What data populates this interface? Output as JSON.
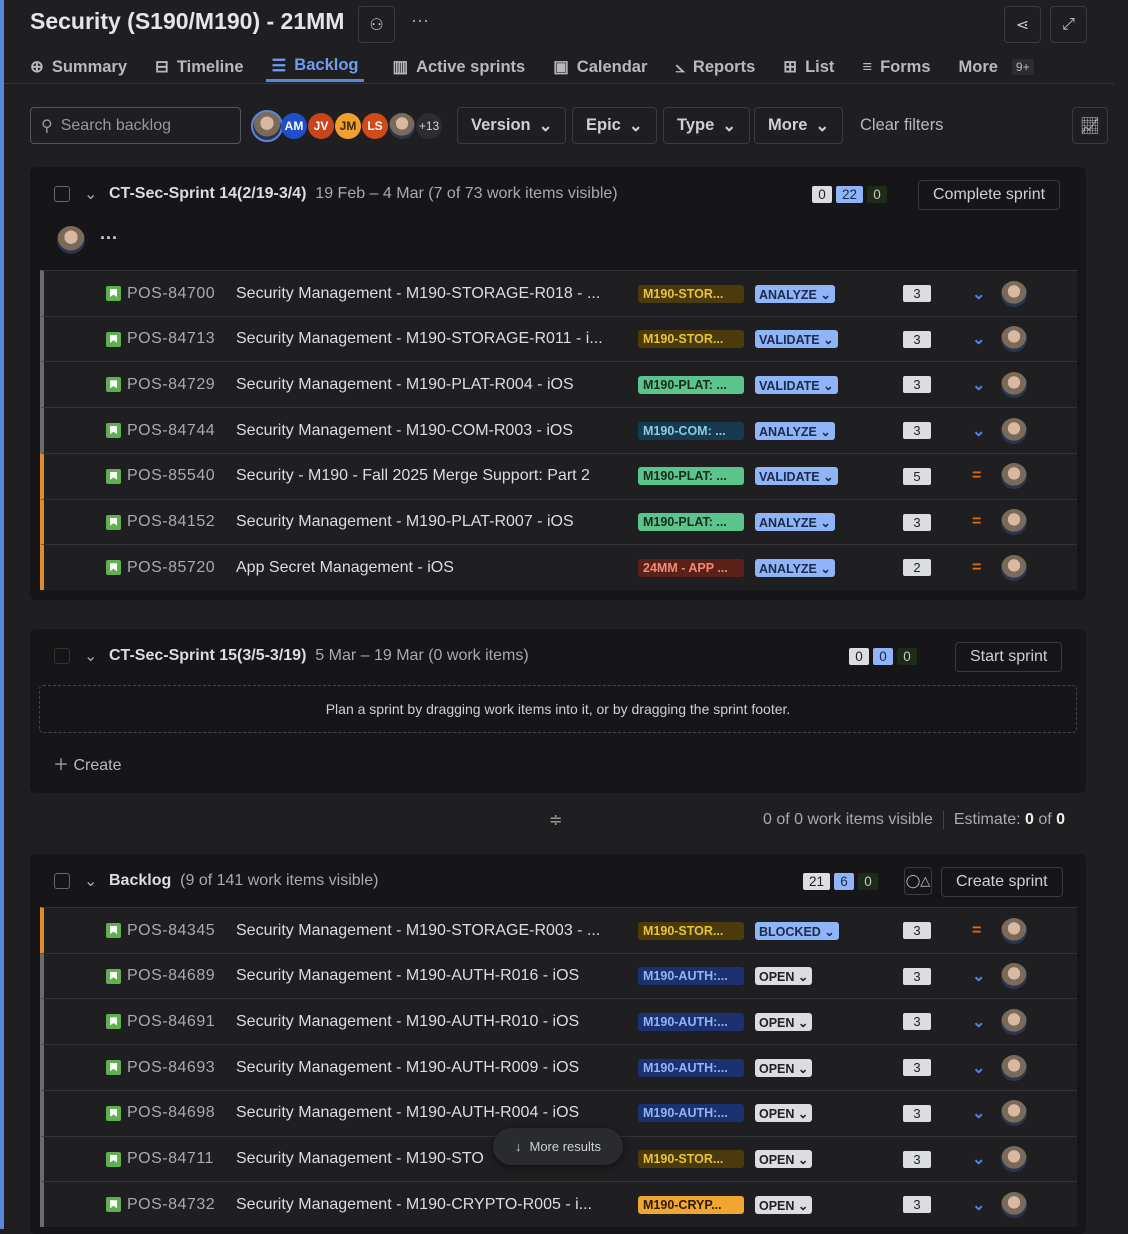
{
  "header": {
    "title": "Security (S190/M190) - 21MM",
    "more_menu": "···"
  },
  "tabs": [
    {
      "label": "Summary",
      "icon": "globe-icon"
    },
    {
      "label": "Timeline",
      "icon": "timeline-icon"
    },
    {
      "label": "Backlog",
      "icon": "backlog-icon",
      "active": true
    },
    {
      "label": "Active sprints",
      "icon": "board-icon"
    },
    {
      "label": "Calendar",
      "icon": "calendar-icon"
    },
    {
      "label": "Reports",
      "icon": "chart-icon"
    },
    {
      "label": "List",
      "icon": "list-icon"
    },
    {
      "label": "Forms",
      "icon": "forms-icon"
    },
    {
      "label": "More",
      "icon": ""
    }
  ],
  "tabs_more_badge": "9+",
  "filters": {
    "search_placeholder": "Search backlog",
    "avatars": [
      "AM",
      "JV",
      "JM",
      "LS"
    ],
    "avatar_more": "+13",
    "version": "Version",
    "epic": "Epic",
    "type": "Type",
    "more": "More",
    "clear": "Clear filters"
  },
  "sprint14": {
    "name": "CT-Sec-Sprint 14(2/19-3/4)",
    "dates": "19 Feb – 4 Mar (7 of 73 work items visible)",
    "counts": [
      "0",
      "22",
      "0"
    ],
    "action": "Complete sprint",
    "dots": "···",
    "rows": [
      {
        "key": "POS-84700",
        "summary": "Security Management - M190-STORAGE-R018 - ...",
        "epic": "M190-STOR...",
        "epic_color": "storage",
        "status": "ANALYZE",
        "est": "3",
        "prio": "low",
        "flag": "gray"
      },
      {
        "key": "POS-84713",
        "summary": "Security Management - M190-STORAGE-R011 - i...",
        "epic": "M190-STOR...",
        "epic_color": "storage",
        "status": "VALIDATE",
        "est": "3",
        "prio": "low",
        "flag": "gray"
      },
      {
        "key": "POS-84729",
        "summary": "Security Management - M190-PLAT-R004 - iOS",
        "epic": "M190-PLAT: ...",
        "epic_color": "plat",
        "status": "VALIDATE",
        "est": "3",
        "prio": "low",
        "flag": "gray"
      },
      {
        "key": "POS-84744",
        "summary": "Security Management - M190-COM-R003 - iOS",
        "epic": "M190-COM: ...",
        "epic_color": "com",
        "status": "ANALYZE",
        "est": "3",
        "prio": "low",
        "flag": "gray"
      },
      {
        "key": "POS-85540",
        "summary": "Security - M190 - Fall 2025 Merge Support: Part 2",
        "epic": "M190-PLAT: ...",
        "epic_color": "plat",
        "status": "VALIDATE",
        "est": "5",
        "prio": "med",
        "flag": "orange"
      },
      {
        "key": "POS-84152",
        "summary": "Security Management - M190-PLAT-R007 - iOS",
        "epic": "M190-PLAT: ...",
        "epic_color": "plat",
        "status": "ANALYZE",
        "est": "3",
        "prio": "med",
        "flag": "orange"
      },
      {
        "key": "POS-85720",
        "summary": "App Secret Management - iOS",
        "epic": "24MM - APP ...",
        "epic_color": "app",
        "status": "ANALYZE",
        "est": "2",
        "prio": "med",
        "flag": "orange"
      }
    ]
  },
  "sprint15": {
    "name": "CT-Sec-Sprint 15(3/5-3/19)",
    "dates": "5 Mar – 19 Mar (0 work items)",
    "counts": [
      "0",
      "0",
      "0"
    ],
    "action": "Start sprint",
    "empty": "Plan a sprint by dragging work items into it, or by dragging the sprint footer.",
    "create": "Create"
  },
  "summary_bar": {
    "visible": "0 of 0 work items visible",
    "estimate_label": "Estimate:",
    "estimate_a": "0",
    "of": "of",
    "estimate_b": "0"
  },
  "backlog": {
    "name": "Backlog",
    "count": "(9 of 141 work items visible)",
    "counts": [
      "21",
      "6",
      "0"
    ],
    "action": "Create sprint",
    "rows": [
      {
        "key": "POS-84345",
        "summary": "Security Management - M190-STORAGE-R003 - ...",
        "epic": "M190-STOR...",
        "epic_color": "storage",
        "status": "BLOCKED",
        "est": "3",
        "prio": "med",
        "flag": "orange"
      },
      {
        "key": "POS-84689",
        "summary": "Security Management - M190-AUTH-R016 - iOS",
        "epic": "M190-AUTH:...",
        "epic_color": "auth",
        "status": "OPEN",
        "est": "3",
        "prio": "low",
        "flag": "gray"
      },
      {
        "key": "POS-84691",
        "summary": "Security Management - M190-AUTH-R010 - iOS",
        "epic": "M190-AUTH:...",
        "epic_color": "auth",
        "status": "OPEN",
        "est": "3",
        "prio": "low",
        "flag": "gray"
      },
      {
        "key": "POS-84693",
        "summary": "Security Management - M190-AUTH-R009 - iOS",
        "epic": "M190-AUTH:...",
        "epic_color": "auth",
        "status": "OPEN",
        "est": "3",
        "prio": "low",
        "flag": "gray"
      },
      {
        "key": "POS-84698",
        "summary": "Security Management - M190-AUTH-R004 - iOS",
        "epic": "M190-AUTH:...",
        "epic_color": "auth",
        "status": "OPEN",
        "est": "3",
        "prio": "low",
        "flag": "gray"
      },
      {
        "key": "POS-84711",
        "summary": "Security Management - M190-STO",
        "epic": "M190-STOR...",
        "epic_color": "storage",
        "status": "OPEN",
        "est": "3",
        "prio": "low",
        "flag": "gray"
      },
      {
        "key": "POS-84732",
        "summary": "Security Management - M190-CRYPTO-R005 - i...",
        "epic": "M190-CRYP...",
        "epic_color": "crypto",
        "status": "OPEN",
        "est": "3",
        "prio": "low",
        "flag": "gray"
      }
    ]
  },
  "more_results": "More results",
  "epic_colors": {
    "storage": [
      "#4a3a0c",
      "#e8c43a"
    ],
    "plat": [
      "#5bc48a",
      "#1c2a22"
    ],
    "com": [
      "#173a4f",
      "#8ccbe8"
    ],
    "app": [
      "#5a2118",
      "#f08a74"
    ],
    "auth": [
      "#1c3270",
      "#8fb4f7"
    ],
    "crypto": [
      "#f0a630",
      "#2a1c05"
    ]
  },
  "colors": {
    "accent": "#5a86e0",
    "priority_low": "#4c84f0",
    "priority_medium": "#e06c14"
  }
}
